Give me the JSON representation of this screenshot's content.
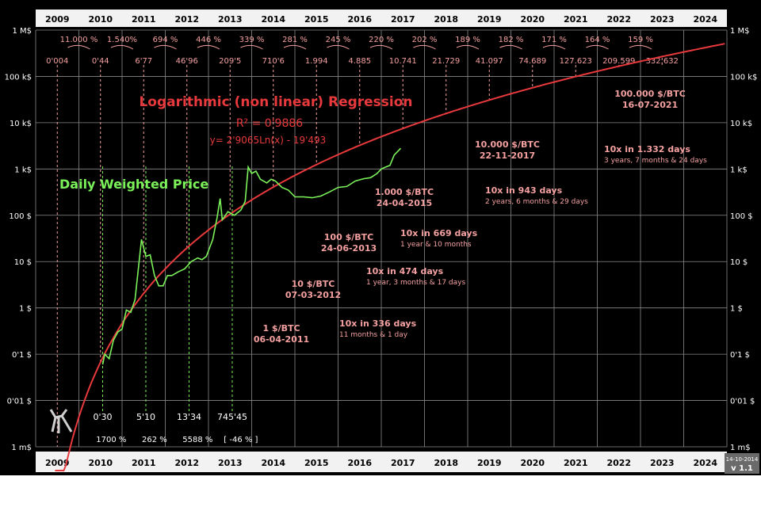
{
  "chart_data": {
    "type": "line",
    "title": "Logarithmic (non linear) Regression",
    "r_squared": "R² = 0'9886",
    "equation": "y= 2'9065Ln(x) - 19'493",
    "series_label": "Daily Weighted Price",
    "y_scale": "log",
    "ylim": [
      0.001,
      1000000
    ],
    "xlim": [
      2009,
      2025
    ],
    "years": [
      "2009",
      "2010",
      "2011",
      "2012",
      "2013",
      "2014",
      "2015",
      "2016",
      "2017",
      "2018",
      "2019",
      "2020",
      "2021",
      "2022",
      "2023",
      "2024"
    ],
    "y_ticks": [
      {
        "label": "1 M$",
        "value": 1000000
      },
      {
        "label": "100 k$",
        "value": 100000
      },
      {
        "label": "10 k$",
        "value": 10000
      },
      {
        "label": "1 k$",
        "value": 1000
      },
      {
        "label": "100 $",
        "value": 100
      },
      {
        "label": "10 $",
        "value": 10
      },
      {
        "label": "1 $",
        "value": 1
      },
      {
        "label": "0'1 $",
        "value": 0.1
      },
      {
        "label": "0'01 $",
        "value": 0.01
      },
      {
        "label": "1 m$",
        "value": 0.001
      }
    ],
    "regression_values": [
      {
        "x": 2009.5,
        "label": "0'004"
      },
      {
        "x": 2010.5,
        "label": "0'44"
      },
      {
        "x": 2011.5,
        "label": "6'77"
      },
      {
        "x": 2012.5,
        "label": "46'96"
      },
      {
        "x": 2013.5,
        "label": "209'5"
      },
      {
        "x": 2014.5,
        "label": "710'6"
      },
      {
        "x": 2015.5,
        "label": "1.994"
      },
      {
        "x": 2016.5,
        "label": "4.885"
      },
      {
        "x": 2017.5,
        "label": "10.741"
      },
      {
        "x": 2018.5,
        "label": "21.729"
      },
      {
        "x": 2019.5,
        "label": "41.097"
      },
      {
        "x": 2020.5,
        "label": "74.689"
      },
      {
        "x": 2021.5,
        "label": "127.623"
      },
      {
        "x": 2022.5,
        "label": "209.599"
      },
      {
        "x": 2023.5,
        "label": "332.632"
      }
    ],
    "regression_growth": [
      "11.000 %",
      "1.540%",
      "694 %",
      "446 %",
      "339 %",
      "281 %",
      "245 %",
      "220 %",
      "202 %",
      "189 %",
      "182 %",
      "171 %",
      "164 %",
      "159 %"
    ],
    "price_points": [
      {
        "x": 2010.55,
        "y": 0.06
      },
      {
        "x": 2010.6,
        "y": 0.1
      },
      {
        "x": 2010.7,
        "y": 0.08
      },
      {
        "x": 2010.8,
        "y": 0.2
      },
      {
        "x": 2010.9,
        "y": 0.3
      },
      {
        "x": 2011.0,
        "y": 0.35
      },
      {
        "x": 2011.1,
        "y": 0.9
      },
      {
        "x": 2011.2,
        "y": 0.8
      },
      {
        "x": 2011.3,
        "y": 1.5
      },
      {
        "x": 2011.45,
        "y": 30
      },
      {
        "x": 2011.55,
        "y": 13
      },
      {
        "x": 2011.65,
        "y": 14
      },
      {
        "x": 2011.75,
        "y": 5
      },
      {
        "x": 2011.85,
        "y": 3
      },
      {
        "x": 2011.95,
        "y": 3
      },
      {
        "x": 2012.05,
        "y": 5
      },
      {
        "x": 2012.15,
        "y": 5
      },
      {
        "x": 2012.3,
        "y": 6
      },
      {
        "x": 2012.45,
        "y": 7
      },
      {
        "x": 2012.6,
        "y": 10
      },
      {
        "x": 2012.75,
        "y": 12
      },
      {
        "x": 2012.85,
        "y": 11
      },
      {
        "x": 2012.95,
        "y": 13
      },
      {
        "x": 2013.1,
        "y": 30
      },
      {
        "x": 2013.2,
        "y": 90
      },
      {
        "x": 2013.27,
        "y": 230
      },
      {
        "x": 2013.32,
        "y": 80
      },
      {
        "x": 2013.45,
        "y": 120
      },
      {
        "x": 2013.6,
        "y": 100
      },
      {
        "x": 2013.75,
        "y": 130
      },
      {
        "x": 2013.85,
        "y": 200
      },
      {
        "x": 2013.92,
        "y": 1100
      },
      {
        "x": 2014.0,
        "y": 800
      },
      {
        "x": 2014.1,
        "y": 900
      },
      {
        "x": 2014.2,
        "y": 600
      },
      {
        "x": 2014.35,
        "y": 500
      },
      {
        "x": 2014.45,
        "y": 600
      },
      {
        "x": 2014.55,
        "y": 550
      },
      {
        "x": 2014.7,
        "y": 400
      },
      {
        "x": 2014.85,
        "y": 350
      },
      {
        "x": 2015.0,
        "y": 250
      },
      {
        "x": 2015.2,
        "y": 250
      },
      {
        "x": 2015.4,
        "y": 240
      },
      {
        "x": 2015.6,
        "y": 260
      },
      {
        "x": 2015.8,
        "y": 320
      },
      {
        "x": 2016.0,
        "y": 400
      },
      {
        "x": 2016.2,
        "y": 420
      },
      {
        "x": 2016.4,
        "y": 550
      },
      {
        "x": 2016.6,
        "y": 620
      },
      {
        "x": 2016.75,
        "y": 650
      },
      {
        "x": 2016.9,
        "y": 800
      },
      {
        "x": 2017.0,
        "y": 1000
      },
      {
        "x": 2017.1,
        "y": 1100
      },
      {
        "x": 2017.2,
        "y": 1200
      },
      {
        "x": 2017.3,
        "y": 2000
      },
      {
        "x": 2017.4,
        "y": 2500
      },
      {
        "x": 2017.45,
        "y": 2800
      }
    ],
    "bottom_values": [
      {
        "x": 2010.55,
        "label": "0'30"
      },
      {
        "x": 2011.55,
        "label": "5'10"
      },
      {
        "x": 2012.55,
        "label": "13'34"
      },
      {
        "x": 2013.55,
        "label": "745'45"
      }
    ],
    "bottom_growth": [
      "1700 %",
      "262 %",
      "5588 %",
      "[ -46 % ]"
    ],
    "milestones": [
      {
        "price": "1",
        "unit": " $/BTC",
        "date": "06-04-2011"
      },
      {
        "price": "10",
        "unit": " $/BTC",
        "date": "07-03-2012"
      },
      {
        "price": "100",
        "unit": " $/BTC",
        "date": "24-06-2013"
      },
      {
        "price": "1.000",
        "unit": " $/BTC",
        "date": "24-04-2015"
      },
      {
        "price": "10.000",
        "unit": " $/BTC",
        "date": "22-11-2017"
      },
      {
        "price": "100.000",
        "unit": " $/BTC",
        "date": "16-07-2021"
      }
    ],
    "durations": [
      {
        "line1": "10x in 336 days",
        "line2": "11 months & 1 day"
      },
      {
        "line1": "10x in 474 days",
        "line2": "1 year, 3 months & 17 days"
      },
      {
        "line1": "10x in 669 days",
        "line2": "1 year & 10 months"
      },
      {
        "line1": "10x in 943 days",
        "line2": "2 years, 6 months & 29 days"
      },
      {
        "line1": "10x  in 1.332 days",
        "line2": "3 years, 7 months & 24 days"
      }
    ],
    "version_date": "14-10-2014",
    "version": "v 1.1",
    "colors": {
      "background": "#000000",
      "regression": "#e8393c",
      "price": "#7cf25a",
      "label": "#f4a0a0",
      "grid": "#8a8a8a",
      "year_bar": "#f2f2f2"
    }
  }
}
